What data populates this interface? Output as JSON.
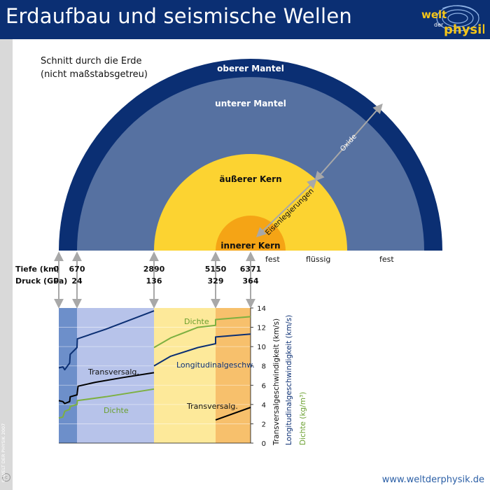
{
  "header": {
    "title": "Erdaufbau und seismische Wellen"
  },
  "logo": {
    "line1": "welt",
    "line2": "der",
    "line3": "physik"
  },
  "subtitle": {
    "line1": "Schnitt durch die Erde",
    "line2": "(nicht maßstabsgetreu)"
  },
  "layers": {
    "upper_mantle": "oberer Mantel",
    "lower_mantle": "unterer Mantel",
    "outer_core": "äußerer Kern",
    "inner_core": "innerer Kern"
  },
  "annotations": {
    "oxide": "Oxide",
    "iron_alloys": "Eisenlegierungen"
  },
  "states": {
    "solid_inner": "fest",
    "liquid": "flüssig",
    "solid_mantle": "fest"
  },
  "rows": {
    "depth_label": "Tiefe (km)",
    "pressure_label": "Druck (GPa)"
  },
  "depths": [
    "0",
    "670",
    "2890",
    "5150",
    "6371"
  ],
  "pressures": [
    "0",
    "24",
    "136",
    "329",
    "364"
  ],
  "colors": {
    "header": "#0b2f73",
    "upper_mantle": "#0b2f73",
    "lower_mantle": "#5671a1",
    "outer_core": "#fcd331",
    "inner_core": "#f5a415",
    "transversal": "#000000",
    "longitudinal": "#0b2f73",
    "density": "#7db041"
  },
  "chart_data": {
    "type": "line",
    "x_domain": [
      0,
      6371
    ],
    "xlabel": "",
    "y_axis": {
      "ticks": [
        0,
        2,
        4,
        6,
        8,
        10,
        12,
        14
      ],
      "ylim": [
        0,
        14
      ]
    },
    "ylabels": [
      "Transversalgeschwindigkeit (km/s)",
      "Longitudinalgeschwindigkeit (km/s)",
      "Dichte (kg/m³)"
    ],
    "curve_labels": {
      "transversal_mantle": "Transversalg.",
      "transversal_core": "Transversalg.",
      "longitudinal": "Longitudinalgeschw.",
      "density_mantle": "Dichte",
      "density_core": "Dichte"
    },
    "series": [
      {
        "id": "transversal",
        "segments": [
          [
            [
              0,
              4.4
            ],
            [
              150,
              4.3
            ],
            [
              220,
              4.1
            ],
            [
              400,
              4.3
            ],
            [
              420,
              4.8
            ],
            [
              670,
              5.0
            ],
            [
              700,
              5.9
            ],
            [
              1200,
              6.3
            ],
            [
              2000,
              6.8
            ],
            [
              2890,
              7.3
            ]
          ],
          [
            [
              5150,
              2.4
            ],
            [
              6371,
              3.7
            ]
          ]
        ]
      },
      {
        "id": "longitudinal",
        "segments": [
          [
            [
              0,
              7.8
            ],
            [
              150,
              7.9
            ],
            [
              220,
              7.6
            ],
            [
              400,
              8.3
            ],
            [
              420,
              9.2
            ],
            [
              670,
              9.9
            ],
            [
              680,
              10.8
            ],
            [
              1500,
              11.8
            ],
            [
              2890,
              13.7
            ]
          ],
          [
            [
              2890,
              8.0
            ],
            [
              3500,
              9.0
            ],
            [
              4500,
              9.9
            ],
            [
              5150,
              10.3
            ],
            [
              5150,
              11.0
            ],
            [
              6371,
              11.3
            ]
          ]
        ]
      },
      {
        "id": "density",
        "segments": [
          [
            [
              0,
              2.6
            ],
            [
              150,
              2.7
            ],
            [
              220,
              3.3
            ],
            [
              400,
              3.5
            ],
            [
              420,
              3.8
            ],
            [
              670,
              4.0
            ],
            [
              680,
              4.4
            ],
            [
              1500,
              4.8
            ],
            [
              2890,
              5.6
            ]
          ],
          [
            [
              2890,
              9.9
            ],
            [
              3500,
              10.9
            ],
            [
              4500,
              12.0
            ],
            [
              5150,
              12.2
            ],
            [
              5150,
              12.8
            ],
            [
              6371,
              13.1
            ]
          ]
        ]
      }
    ]
  },
  "footer": {
    "url": "www.weltderphysik.de",
    "vertical": "© WELT DER PHYSIK 2007"
  }
}
